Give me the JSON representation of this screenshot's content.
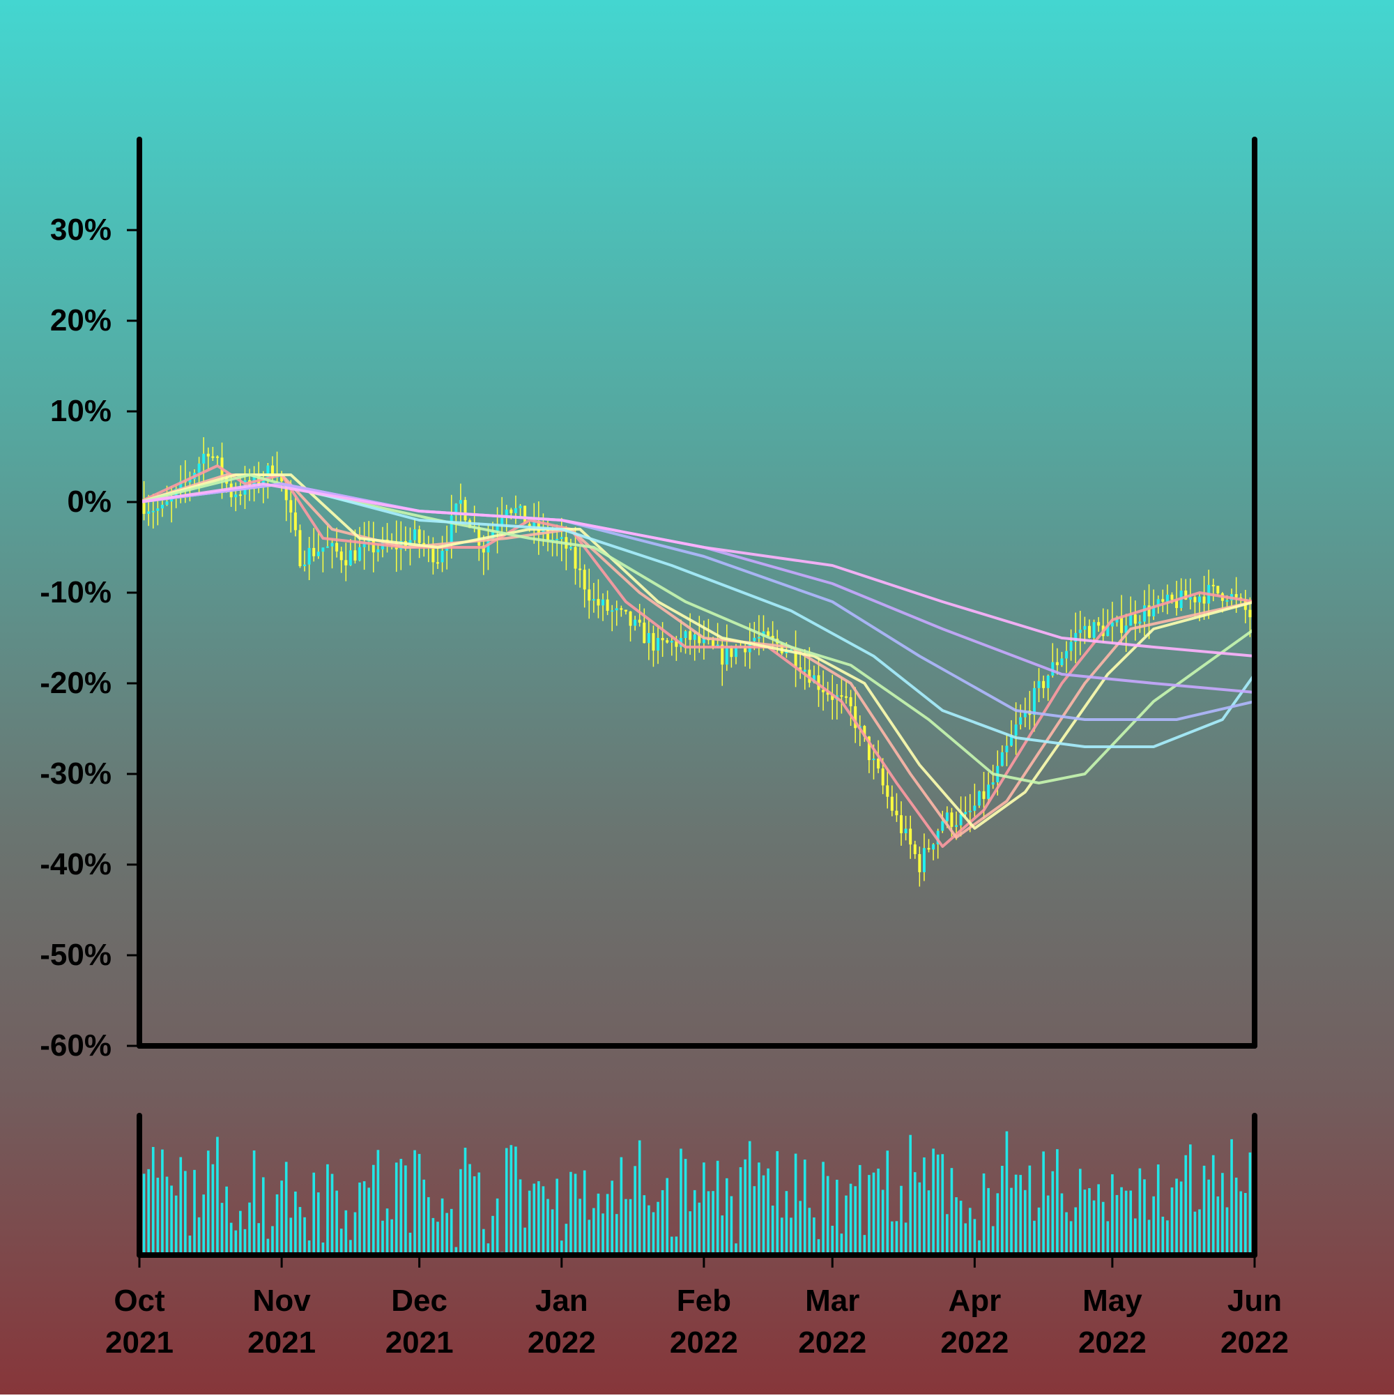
{
  "chart_data": {
    "type": "candlestick",
    "title": "",
    "xlabel": "",
    "ylabel": "",
    "y_format": "percent",
    "ylim": [
      -60,
      40
    ],
    "y_ticks": [
      30,
      20,
      10,
      0,
      -10,
      -20,
      -30,
      -40,
      -50,
      -60
    ],
    "y_tick_labels": [
      "30%",
      "20%",
      "10%",
      "0%",
      "-10%",
      "-20%",
      "-30%",
      "-40%",
      "-50%",
      "-60%"
    ],
    "x_range": [
      "2021-10-01",
      "2022-06-01"
    ],
    "x_ticks": [
      {
        "date": "2021-10-01",
        "month": "Oct",
        "year": "2021"
      },
      {
        "date": "2021-11-01",
        "month": "Nov",
        "year": "2021"
      },
      {
        "date": "2021-12-01",
        "month": "Dec",
        "year": "2021"
      },
      {
        "date": "2022-01-01",
        "month": "Jan",
        "year": "2022"
      },
      {
        "date": "2022-02-01",
        "month": "Feb",
        "year": "2022"
      },
      {
        "date": "2022-03-01",
        "month": "Mar",
        "year": "2022"
      },
      {
        "date": "2022-04-01",
        "month": "Apr",
        "year": "2022"
      },
      {
        "date": "2022-05-01",
        "month": "May",
        "year": "2022"
      },
      {
        "date": "2022-06-01",
        "month": "Jun",
        "year": "2022"
      }
    ],
    "grid": false,
    "legend": "none",
    "price_path": [
      {
        "date": "2021-10-01",
        "close": 0
      },
      {
        "date": "2021-10-06",
        "close": -1
      },
      {
        "date": "2021-10-11",
        "close": 2
      },
      {
        "date": "2021-10-16",
        "close": 6
      },
      {
        "date": "2021-10-21",
        "close": 1
      },
      {
        "date": "2021-10-26",
        "close": 2
      },
      {
        "date": "2021-10-31",
        "close": 4
      },
      {
        "date": "2021-11-05",
        "close": -6
      },
      {
        "date": "2021-11-10",
        "close": -5
      },
      {
        "date": "2021-11-15",
        "close": -6
      },
      {
        "date": "2021-11-20",
        "close": -5
      },
      {
        "date": "2021-11-25",
        "close": -5
      },
      {
        "date": "2021-11-30",
        "close": -4
      },
      {
        "date": "2021-12-05",
        "close": -6
      },
      {
        "date": "2021-12-10",
        "close": 0
      },
      {
        "date": "2021-12-15",
        "close": -5
      },
      {
        "date": "2021-12-20",
        "close": 0
      },
      {
        "date": "2021-12-26",
        "close": -3
      },
      {
        "date": "2022-01-02",
        "close": -5
      },
      {
        "date": "2022-01-08",
        "close": -11
      },
      {
        "date": "2022-01-15",
        "close": -13
      },
      {
        "date": "2022-01-22",
        "close": -16
      },
      {
        "date": "2022-01-29",
        "close": -15
      },
      {
        "date": "2022-02-05",
        "close": -17
      },
      {
        "date": "2022-02-12",
        "close": -15
      },
      {
        "date": "2022-02-19",
        "close": -16
      },
      {
        "date": "2022-02-26",
        "close": -20
      },
      {
        "date": "2022-03-05",
        "close": -23
      },
      {
        "date": "2022-03-10",
        "close": -29
      },
      {
        "date": "2022-03-15",
        "close": -35
      },
      {
        "date": "2022-03-20",
        "close": -40
      },
      {
        "date": "2022-03-25",
        "close": -35
      },
      {
        "date": "2022-03-30",
        "close": -35
      },
      {
        "date": "2022-04-05",
        "close": -31
      },
      {
        "date": "2022-04-10",
        "close": -25
      },
      {
        "date": "2022-04-17",
        "close": -19
      },
      {
        "date": "2022-04-24",
        "close": -14
      },
      {
        "date": "2022-05-01",
        "close": -14
      },
      {
        "date": "2022-05-08",
        "close": -12
      },
      {
        "date": "2022-05-15",
        "close": -11
      },
      {
        "date": "2022-05-22",
        "close": -10
      },
      {
        "date": "2022-05-26",
        "close": -10
      },
      {
        "date": "2022-05-30",
        "close": -12
      },
      {
        "date": "2022-06-01",
        "close": -13
      }
    ],
    "moving_averages": [
      {
        "window": 5,
        "color": "#ff9aa2",
        "points": [
          {
            "date": "2021-10-01",
            "value": 0
          },
          {
            "date": "2021-10-18",
            "value": 4
          },
          {
            "date": "2021-10-24",
            "value": 2
          },
          {
            "date": "2021-11-01",
            "value": 3
          },
          {
            "date": "2021-11-10",
            "value": -4
          },
          {
            "date": "2021-11-28",
            "value": -5
          },
          {
            "date": "2021-12-15",
            "value": -5
          },
          {
            "date": "2021-12-25",
            "value": -2
          },
          {
            "date": "2022-01-03",
            "value": -3
          },
          {
            "date": "2022-01-15",
            "value": -11
          },
          {
            "date": "2022-01-28",
            "value": -16
          },
          {
            "date": "2022-02-15",
            "value": -16
          },
          {
            "date": "2022-03-03",
            "value": -22
          },
          {
            "date": "2022-03-15",
            "value": -31
          },
          {
            "date": "2022-03-25",
            "value": -38
          },
          {
            "date": "2022-04-03",
            "value": -34
          },
          {
            "date": "2022-04-20",
            "value": -20
          },
          {
            "date": "2022-05-01",
            "value": -13
          },
          {
            "date": "2022-05-20",
            "value": -10
          },
          {
            "date": "2022-06-01",
            "value": -11
          }
        ]
      },
      {
        "window": 10,
        "color": "#ffb7a8",
        "points": [
          {
            "date": "2021-10-01",
            "value": 0
          },
          {
            "date": "2021-10-20",
            "value": 3
          },
          {
            "date": "2021-11-01",
            "value": 3
          },
          {
            "date": "2021-11-12",
            "value": -3
          },
          {
            "date": "2021-11-28",
            "value": -5
          },
          {
            "date": "2021-12-20",
            "value": -4
          },
          {
            "date": "2022-01-03",
            "value": -3
          },
          {
            "date": "2022-01-18",
            "value": -10
          },
          {
            "date": "2022-02-01",
            "value": -15
          },
          {
            "date": "2022-02-20",
            "value": -16
          },
          {
            "date": "2022-03-05",
            "value": -20
          },
          {
            "date": "2022-03-18",
            "value": -30
          },
          {
            "date": "2022-03-28",
            "value": -37
          },
          {
            "date": "2022-04-08",
            "value": -33
          },
          {
            "date": "2022-04-25",
            "value": -20
          },
          {
            "date": "2022-05-05",
            "value": -14
          },
          {
            "date": "2022-06-01",
            "value": -11
          }
        ]
      },
      {
        "window": 15,
        "color": "#ffffb0",
        "points": [
          {
            "date": "2021-10-01",
            "value": 0
          },
          {
            "date": "2021-10-22",
            "value": 3
          },
          {
            "date": "2021-11-03",
            "value": 3
          },
          {
            "date": "2021-11-18",
            "value": -4
          },
          {
            "date": "2021-12-05",
            "value": -5
          },
          {
            "date": "2021-12-25",
            "value": -3
          },
          {
            "date": "2022-01-05",
            "value": -3
          },
          {
            "date": "2022-01-22",
            "value": -11
          },
          {
            "date": "2022-02-05",
            "value": -15
          },
          {
            "date": "2022-02-25",
            "value": -17
          },
          {
            "date": "2022-03-08",
            "value": -20
          },
          {
            "date": "2022-03-20",
            "value": -29
          },
          {
            "date": "2022-04-01",
            "value": -36
          },
          {
            "date": "2022-04-12",
            "value": -32
          },
          {
            "date": "2022-04-30",
            "value": -19
          },
          {
            "date": "2022-05-10",
            "value": -14
          },
          {
            "date": "2022-06-01",
            "value": -11
          }
        ]
      },
      {
        "window": 20,
        "color": "#c8f7b0",
        "points": [
          {
            "date": "2021-10-01",
            "value": 0
          },
          {
            "date": "2021-10-25",
            "value": 3
          },
          {
            "date": "2021-11-08",
            "value": 1
          },
          {
            "date": "2021-12-05",
            "value": -2
          },
          {
            "date": "2021-12-25",
            "value": -4
          },
          {
            "date": "2022-01-08",
            "value": -5
          },
          {
            "date": "2022-01-28",
            "value": -11
          },
          {
            "date": "2022-02-20",
            "value": -16
          },
          {
            "date": "2022-03-05",
            "value": -18
          },
          {
            "date": "2022-03-22",
            "value": -24
          },
          {
            "date": "2022-04-05",
            "value": -30
          },
          {
            "date": "2022-04-15",
            "value": -31
          },
          {
            "date": "2022-04-25",
            "value": -30
          },
          {
            "date": "2022-05-10",
            "value": -22
          },
          {
            "date": "2022-06-01",
            "value": -14
          }
        ]
      },
      {
        "window": 30,
        "color": "#a8f0ff",
        "points": [
          {
            "date": "2021-10-01",
            "value": 0
          },
          {
            "date": "2021-11-01",
            "value": 2
          },
          {
            "date": "2021-12-01",
            "value": -2
          },
          {
            "date": "2022-01-01",
            "value": -3
          },
          {
            "date": "2022-01-25",
            "value": -7
          },
          {
            "date": "2022-02-20",
            "value": -12
          },
          {
            "date": "2022-03-10",
            "value": -17
          },
          {
            "date": "2022-03-25",
            "value": -23
          },
          {
            "date": "2022-04-10",
            "value": -26
          },
          {
            "date": "2022-04-25",
            "value": -27
          },
          {
            "date": "2022-05-10",
            "value": -27
          },
          {
            "date": "2022-05-25",
            "value": -24
          },
          {
            "date": "2022-06-01",
            "value": -19
          }
        ]
      },
      {
        "window": 40,
        "color": "#b0b8ff",
        "points": [
          {
            "date": "2021-10-01",
            "value": 0
          },
          {
            "date": "2021-11-01",
            "value": 2
          },
          {
            "date": "2021-12-01",
            "value": -1
          },
          {
            "date": "2022-01-01",
            "value": -2
          },
          {
            "date": "2022-02-01",
            "value": -6
          },
          {
            "date": "2022-03-01",
            "value": -11
          },
          {
            "date": "2022-03-20",
            "value": -17
          },
          {
            "date": "2022-04-10",
            "value": -23
          },
          {
            "date": "2022-04-25",
            "value": -24
          },
          {
            "date": "2022-05-15",
            "value": -24
          },
          {
            "date": "2022-06-01",
            "value": -22
          }
        ]
      },
      {
        "window": 50,
        "color": "#c8a8ff",
        "points": [
          {
            "date": "2021-10-01",
            "value": 0
          },
          {
            "date": "2021-11-01",
            "value": 2
          },
          {
            "date": "2021-12-01",
            "value": -1
          },
          {
            "date": "2022-01-01",
            "value": -2
          },
          {
            "date": "2022-02-01",
            "value": -5
          },
          {
            "date": "2022-03-01",
            "value": -9
          },
          {
            "date": "2022-03-25",
            "value": -14
          },
          {
            "date": "2022-04-20",
            "value": -19
          },
          {
            "date": "2022-05-10",
            "value": -20
          },
          {
            "date": "2022-06-01",
            "value": -21
          }
        ]
      },
      {
        "window": 60,
        "color": "#ffb3ff",
        "points": [
          {
            "date": "2021-10-01",
            "value": 0
          },
          {
            "date": "2021-10-28",
            "value": 2
          },
          {
            "date": "2021-12-01",
            "value": -1
          },
          {
            "date": "2022-01-01",
            "value": -2
          },
          {
            "date": "2022-02-01",
            "value": -5
          },
          {
            "date": "2022-03-01",
            "value": -7
          },
          {
            "date": "2022-03-25",
            "value": -11
          },
          {
            "date": "2022-04-20",
            "value": -15
          },
          {
            "date": "2022-05-10",
            "value": -16
          },
          {
            "date": "2022-06-01",
            "value": -17
          }
        ]
      }
    ],
    "volume": {
      "color": "#22e6e6",
      "seed": 7,
      "base": 0.5,
      "variation": 0.5
    }
  }
}
